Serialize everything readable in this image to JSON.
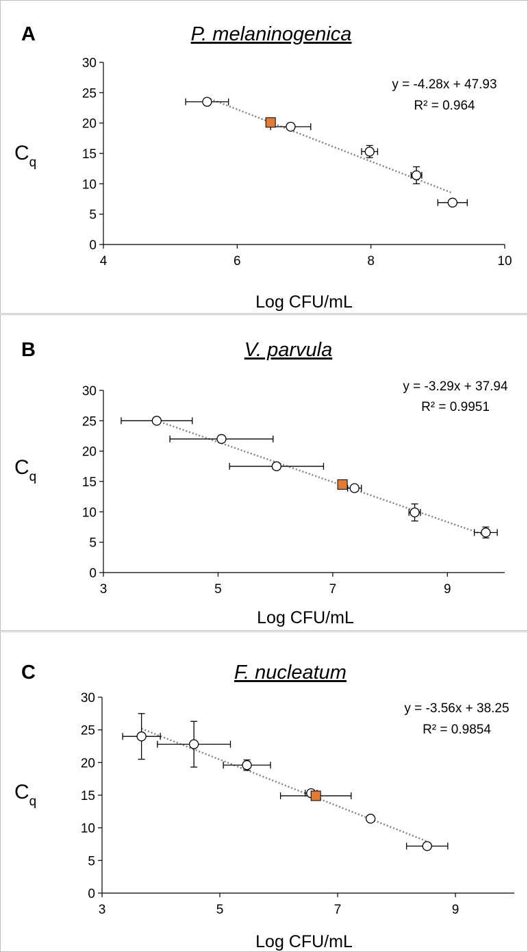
{
  "colors": {
    "highlight": "#e07b39",
    "open_marker": "#ffffff",
    "trend": "#808080",
    "axis": "#000000"
  },
  "chart_data": [
    {
      "panel": "A",
      "title": "P. melaninogenica",
      "type": "scatter",
      "xlabel": "Log CFU/mL",
      "ylabel": "C",
      "ylabel_sub": "q",
      "xlim": [
        4,
        10
      ],
      "ylim": [
        0,
        30
      ],
      "xticks": [
        4,
        6,
        8,
        10
      ],
      "yticks": [
        0,
        5,
        10,
        15,
        20,
        25,
        30
      ],
      "equation": "y = -4.28x + 47.93",
      "r2": "R² = 0.964",
      "trendline": {
        "slope": -4.28,
        "intercept": 47.93,
        "x_range": [
          5.55,
          9.22
        ]
      },
      "points": [
        {
          "x": 5.55,
          "y": 23.5,
          "xerr": 0.32,
          "yerr": 0.4,
          "marker": "circle"
        },
        {
          "x": 6.8,
          "y": 19.4,
          "xerr": 0.3,
          "yerr": 0.4,
          "marker": "circle"
        },
        {
          "x": 7.98,
          "y": 15.3,
          "xerr": 0.12,
          "yerr": 1.0,
          "marker": "circle"
        },
        {
          "x": 8.68,
          "y": 11.4,
          "xerr": 0.08,
          "yerr": 1.4,
          "marker": "circle"
        },
        {
          "x": 9.22,
          "y": 6.9,
          "xerr": 0.22,
          "yerr": 0.3,
          "marker": "circle"
        },
        {
          "x": 6.5,
          "y": 20.1,
          "marker": "square"
        }
      ]
    },
    {
      "panel": "B",
      "title": "V. parvula",
      "type": "scatter",
      "xlabel": "Log CFU/mL",
      "ylabel": "C",
      "ylabel_sub": "q",
      "xlim": [
        3,
        10
      ],
      "ylim": [
        0,
        30
      ],
      "xticks": [
        3,
        5,
        7,
        9
      ],
      "yticks": [
        0,
        5,
        10,
        15,
        20,
        25,
        30
      ],
      "equation": "y = -3.29x + 37.94",
      "r2": "R² = 0.9951",
      "trendline": {
        "slope": -3.29,
        "intercept": 37.94,
        "x_range": [
          3.93,
          9.67
        ]
      },
      "points": [
        {
          "x": 3.93,
          "y": 25.0,
          "xerr": 0.62,
          "yerr": 0.3,
          "marker": "circle"
        },
        {
          "x": 5.06,
          "y": 22.0,
          "xerr": 0.9,
          "yerr": 0.3,
          "marker": "circle"
        },
        {
          "x": 6.02,
          "y": 17.5,
          "xerr": 0.82,
          "yerr": 0.4,
          "marker": "circle"
        },
        {
          "x": 7.38,
          "y": 13.9,
          "xerr": 0.12,
          "yerr": 0.5,
          "marker": "circle"
        },
        {
          "x": 8.43,
          "y": 9.9,
          "xerr": 0.1,
          "yerr": 1.4,
          "marker": "circle"
        },
        {
          "x": 9.67,
          "y": 6.6,
          "xerr": 0.2,
          "yerr": 0.9,
          "marker": "circle"
        },
        {
          "x": 7.17,
          "y": 14.5,
          "marker": "square"
        }
      ]
    },
    {
      "panel": "C",
      "title": "F. nucleatum",
      "type": "scatter",
      "xlabel": "Log CFU/mL",
      "ylabel": "C",
      "ylabel_sub": "q",
      "xlim": [
        3,
        10
      ],
      "ylim": [
        0,
        30
      ],
      "xticks": [
        3,
        5,
        7,
        9
      ],
      "yticks": [
        0,
        5,
        10,
        15,
        20,
        25,
        30
      ],
      "equation": "y = -3.56x + 38.25",
      "r2": "R² = 0.9854",
      "trendline": {
        "slope": -3.56,
        "intercept": 38.25,
        "x_range": [
          3.67,
          8.52
        ]
      },
      "points": [
        {
          "x": 3.67,
          "y": 24.0,
          "xerr": 0.32,
          "yerr": 3.5,
          "marker": "circle"
        },
        {
          "x": 4.56,
          "y": 22.8,
          "xerr": 0.62,
          "yerr": 3.5,
          "marker": "circle"
        },
        {
          "x": 5.46,
          "y": 19.6,
          "xerr": 0.4,
          "yerr": 0.8,
          "marker": "circle"
        },
        {
          "x": 6.55,
          "y": 15.3,
          "xerr": 0.1,
          "yerr": 0.3,
          "marker": "circle"
        },
        {
          "x": 7.56,
          "y": 11.4,
          "xerr": 0.05,
          "yerr": 0.3,
          "marker": "circle"
        },
        {
          "x": 8.52,
          "y": 7.2,
          "xerr": 0.35,
          "yerr": 0.3,
          "marker": "circle"
        },
        {
          "x": 6.63,
          "y": 14.9,
          "xerr": 0.6,
          "yerr": 0.3,
          "marker": "square"
        }
      ]
    }
  ]
}
